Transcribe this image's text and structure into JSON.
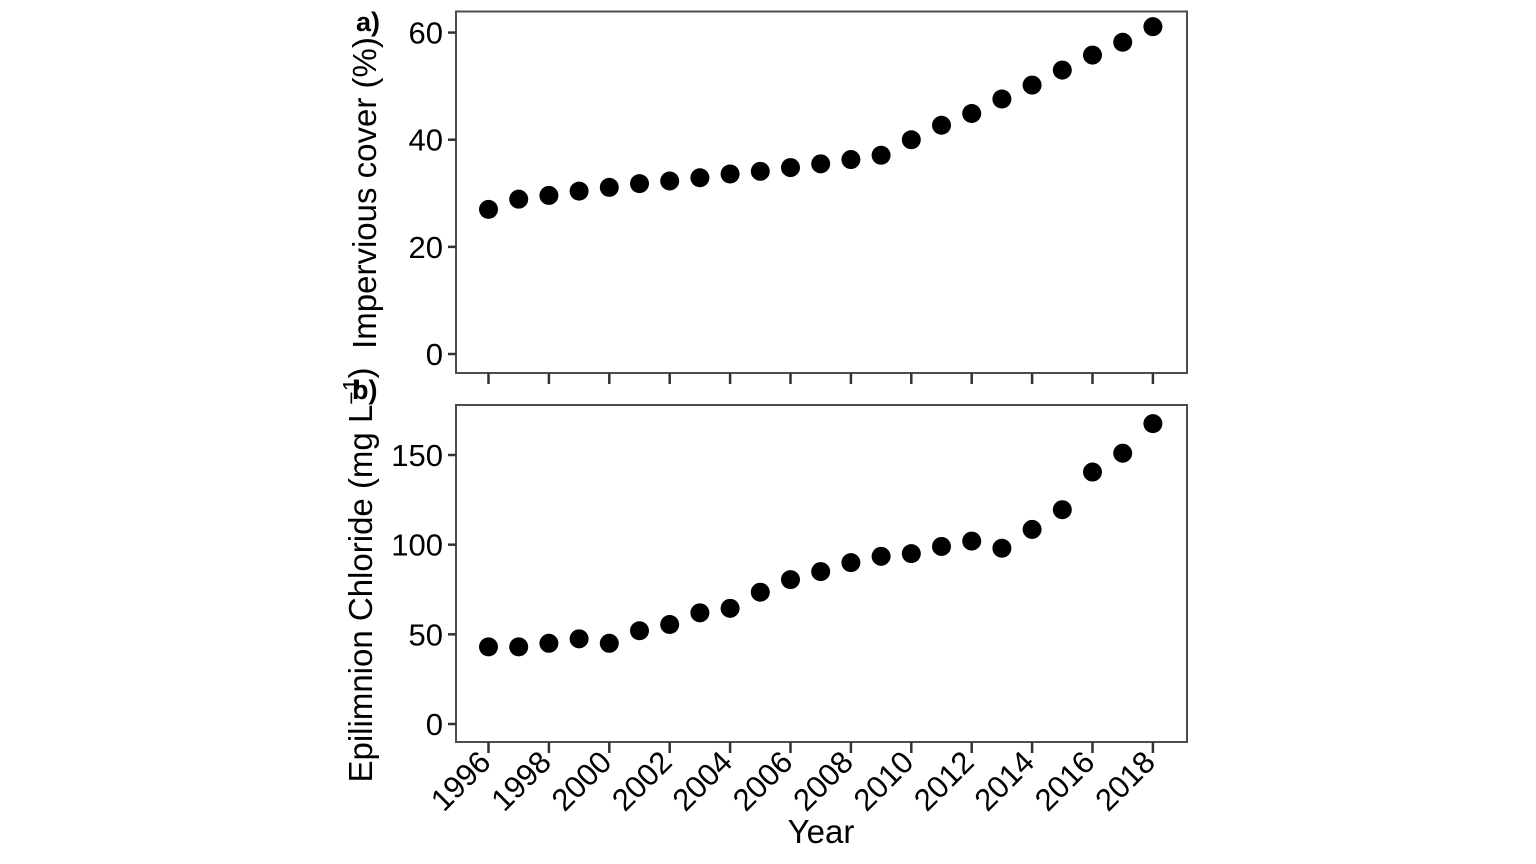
{
  "figure": {
    "background": "#ffffff",
    "point_color": "#000000",
    "panel_border_color": "#4d4d4d",
    "tick_color": "#333333",
    "text_color": "#000000",
    "panel_a_label": "a)",
    "panel_b_label": "b)",
    "xlabel": "Year"
  },
  "chart_data": [
    {
      "id": "a",
      "type": "scatter",
      "panel_label": "a)",
      "title": "",
      "xlabel": "",
      "ylabel": "Impervious cover (%)",
      "x": [
        1996,
        1997,
        1998,
        1999,
        2000,
        2001,
        2002,
        2003,
        2004,
        2005,
        2006,
        2007,
        2008,
        2009,
        2010,
        2011,
        2012,
        2013,
        2014,
        2015,
        2016,
        2017,
        2018
      ],
      "values": [
        27.0,
        28.9,
        29.6,
        30.4,
        31.1,
        31.8,
        32.3,
        32.9,
        33.6,
        34.1,
        34.8,
        35.5,
        36.3,
        37.1,
        40.0,
        42.7,
        44.9,
        47.6,
        50.2,
        53.0,
        55.8,
        58.2,
        61.1
      ],
      "yticks": [
        0,
        20,
        40,
        60
      ],
      "xticks": [
        1996,
        1998,
        2000,
        2002,
        2004,
        2006,
        2008,
        2010,
        2012,
        2014,
        2016,
        2018
      ],
      "x_tick_labels_visible": false,
      "ylim": [
        -3.5,
        64
      ],
      "xlim": [
        1995,
        2019
      ],
      "grid": false,
      "legend": "none",
      "marker": "filled-circle"
    },
    {
      "id": "b",
      "type": "scatter",
      "panel_label": "b)",
      "title": "",
      "xlabel": "Year",
      "ylabel": "Epilimnion Chloride (mg L⁻¹)",
      "ylabel_main": "Epilimnion Chloride (mg L",
      "ylabel_sup": "−1",
      "ylabel_close": ")",
      "x": [
        1996,
        1997,
        1998,
        1999,
        2000,
        2001,
        2002,
        2003,
        2004,
        2005,
        2006,
        2007,
        2008,
        2009,
        2010,
        2011,
        2012,
        2013,
        2014,
        2015,
        2016,
        2017,
        2018
      ],
      "values": [
        43,
        43,
        45,
        47.5,
        45,
        52,
        55.5,
        62,
        64.5,
        73.5,
        80.5,
        85,
        90,
        93.5,
        95,
        99,
        102,
        98,
        108.5,
        119.5,
        140.5,
        151,
        167.5
      ],
      "yticks": [
        0,
        50,
        100,
        150
      ],
      "xticks": [
        1996,
        1998,
        2000,
        2002,
        2004,
        2006,
        2008,
        2010,
        2012,
        2014,
        2016,
        2018
      ],
      "x_tick_labels": [
        "1996",
        "1998",
        "2000",
        "2002",
        "2004",
        "2006",
        "2008",
        "2010",
        "2012",
        "2014",
        "2016",
        "2018"
      ],
      "x_tick_labels_visible": true,
      "x_tick_label_angle": -45,
      "ylim": [
        -10,
        178
      ],
      "xlim": [
        1995,
        2019
      ],
      "grid": false,
      "legend": "none",
      "marker": "filled-circle"
    }
  ]
}
